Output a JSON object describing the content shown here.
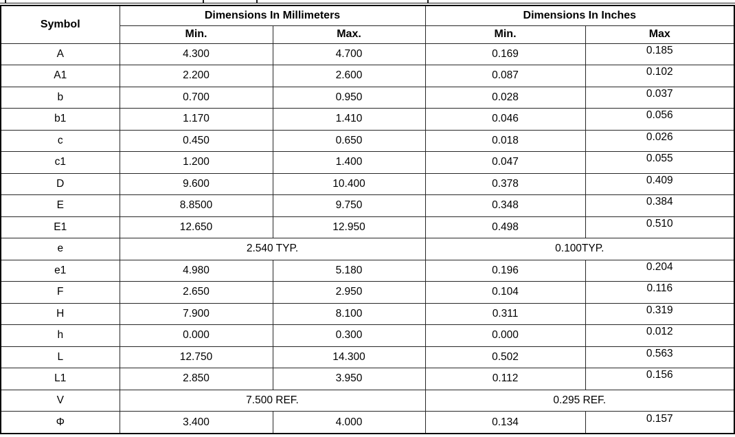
{
  "table": {
    "header": {
      "symbol": "Symbol",
      "mm_group": "Dimensions In Millimeters",
      "in_group": "Dimensions In Inches",
      "mm_min": "Min.",
      "mm_max": "Max.",
      "in_min": "Min.",
      "in_max": "Max"
    },
    "rows": [
      {
        "symbol": "A",
        "mm_min": "4.300",
        "mm_max": "4.700",
        "in_min": "0.169",
        "in_max": "0.185"
      },
      {
        "symbol": "A1",
        "mm_min": "2.200",
        "mm_max": "2.600",
        "in_min": "0.087",
        "in_max": "0.102"
      },
      {
        "symbol": "b",
        "mm_min": "0.700",
        "mm_max": "0.950",
        "in_min": "0.028",
        "in_max": "0.037"
      },
      {
        "symbol": "b1",
        "mm_min": "1.170",
        "mm_max": "1.410",
        "in_min": "0.046",
        "in_max": "0.056"
      },
      {
        "symbol": "c",
        "mm_min": "0.450",
        "mm_max": "0.650",
        "in_min": "0.018",
        "in_max": "0.026"
      },
      {
        "symbol": "c1",
        "mm_min": "1.200",
        "mm_max": "1.400",
        "in_min": "0.047",
        "in_max": "0.055"
      },
      {
        "symbol": "D",
        "mm_min": "9.600",
        "mm_max": "10.400",
        "in_min": "0.378",
        "in_max": "0.409"
      },
      {
        "symbol": "E",
        "mm_min": "8.8500",
        "mm_max": "9.750",
        "in_min": "0.348",
        "in_max": "0.384"
      },
      {
        "symbol": "E1",
        "mm_min": "12.650",
        "mm_max": "12.950",
        "in_min": "0.498",
        "in_max": "0.510"
      },
      {
        "symbol": "e",
        "mm_span": "2.540 TYP.",
        "in_span": "0.100TYP."
      },
      {
        "symbol": "e1",
        "mm_min": "4.980",
        "mm_max": "5.180",
        "in_min": "0.196",
        "in_max": "0.204"
      },
      {
        "symbol": "F",
        "mm_min": "2.650",
        "mm_max": "2.950",
        "in_min": "0.104",
        "in_max": "0.116"
      },
      {
        "symbol": "H",
        "mm_min": "7.900",
        "mm_max": "8.100",
        "in_min": "0.311",
        "in_max": "0.319"
      },
      {
        "symbol": "h",
        "mm_min": "0.000",
        "mm_max": "0.300",
        "in_min": "0.000",
        "in_max": "0.012"
      },
      {
        "symbol": "L",
        "mm_min": "12.750",
        "mm_max": "14.300",
        "in_min": "0.502",
        "in_max": "0.563"
      },
      {
        "symbol": "L1",
        "mm_min": "2.850",
        "mm_max": "3.950",
        "in_min": "0.112",
        "in_max": "0.156"
      },
      {
        "symbol": "V",
        "mm_span": "7.500 REF.",
        "in_span": "0.295 REF."
      },
      {
        "symbol": "Φ",
        "mm_min": "3.400",
        "mm_max": "4.000",
        "in_min": "0.134",
        "in_max": "0.157"
      }
    ],
    "colors": {
      "text": "#000000",
      "border": "#1c1c1c",
      "background": "#ffffff"
    }
  }
}
